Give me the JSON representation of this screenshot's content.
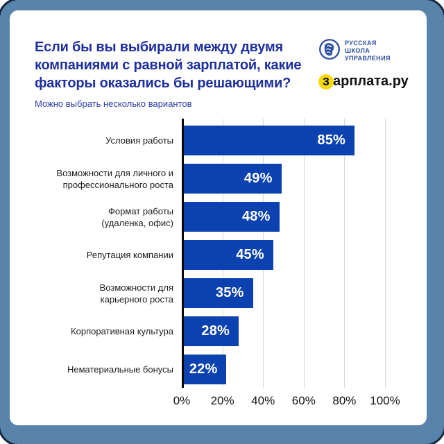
{
  "colors": {
    "frame_blue": "#5883AB",
    "frame_border": "#16243C",
    "card_bg": "#FFFFFF",
    "title_blue": "#1E2F9E",
    "subtitle_blue": "#2B3FA5",
    "bar_blue": "#0C41B0",
    "bar_value_text": "#FFFFFF",
    "category_label_dark": "#1B1B1B",
    "gridline_gray": "#D8D8D8",
    "axis_black": "#0A0A0A",
    "zarplata_yellow": "#F6D908",
    "rsu_logo_blue": "#2B4DA0"
  },
  "header": {
    "title": "Если бы вы выбирали между двумя компаниями с равной зарплатой, какие факторы оказались бы решающими?",
    "subtitle": "Можно выбрать несколько вариантов"
  },
  "logos": {
    "rsu": {
      "line1": "РУССКАЯ",
      "line2": "ШКОЛА",
      "line3": "УПРАВЛЕНИЯ"
    },
    "zarplata": {
      "highlight_letter": "з",
      "rest": "арплата.ру"
    }
  },
  "chart_data": {
    "type": "bar",
    "orientation": "horizontal",
    "title": "Если бы вы выбирали между двумя компаниями с равной зарплатой, какие факторы оказались бы решающими?",
    "subtitle": "Можно выбрать несколько вариантов",
    "categories": [
      "Условия работы",
      "Возможности для личного и профессионального роста",
      "Формат работы (удаленка, офис)",
      "Репутация компании",
      "Возможности для карьерного роста",
      "Корпоративная культура",
      "Нематериальные бонусы"
    ],
    "values": [
      85,
      49,
      48,
      45,
      35,
      28,
      22
    ],
    "xlim": [
      0,
      100
    ],
    "x_ticks": [
      "0%",
      "20%",
      "40%",
      "60%",
      "80%",
      "100%"
    ],
    "grid": "vertical gridlines every 20%",
    "legend": "none",
    "items": [
      {
        "label_lines": [
          "Условия работы"
        ],
        "value": 85,
        "value_label": "85%"
      },
      {
        "label_lines": [
          "Возможности для личного и",
          "профессионального роста"
        ],
        "value": 49,
        "value_label": "49%"
      },
      {
        "label_lines": [
          "Формат работы",
          "(удаленка, офис)"
        ],
        "value": 48,
        "value_label": "48%"
      },
      {
        "label_lines": [
          "Репутация компании"
        ],
        "value": 45,
        "value_label": "45%"
      },
      {
        "label_lines": [
          "Возможности для",
          "карьерного роста"
        ],
        "value": 35,
        "value_label": "35%"
      },
      {
        "label_lines": [
          "Корпоративная культура"
        ],
        "value": 28,
        "value_label": "28%"
      },
      {
        "label_lines": [
          "Нематериальные бонусы"
        ],
        "value": 22,
        "value_label": "22%"
      }
    ]
  }
}
